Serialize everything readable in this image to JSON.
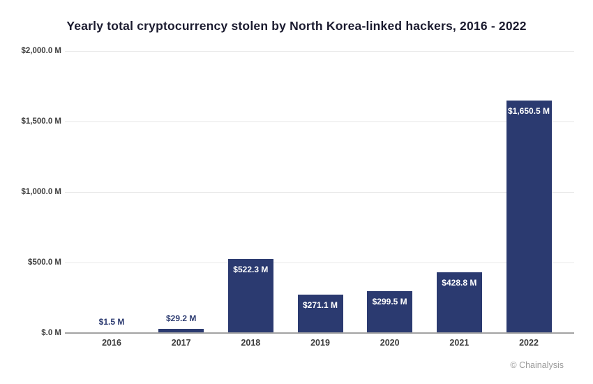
{
  "title": "Yearly total cryptocurrency stolen by North Korea-linked hackers, 2016 - 2022",
  "footer": "© Chainalysis",
  "colors": {
    "bar": "#2b3a70",
    "label_inside": "#ffffff",
    "label_outside": "#2b3a70",
    "gridline": "#e8e8e8",
    "baseline": "#a3a3a3",
    "axis_text": "#3d3d3d",
    "title_text": "#1b1b2f",
    "attribution_text": "#9b9b9b"
  },
  "chart_data": {
    "type": "bar",
    "title": "Yearly total cryptocurrency stolen by North Korea-linked hackers, 2016 - 2022",
    "categories": [
      "2016",
      "2017",
      "2018",
      "2019",
      "2020",
      "2021",
      "2022"
    ],
    "values": [
      1.5,
      29.2,
      522.3,
      271.1,
      299.5,
      428.8,
      1650.5
    ],
    "bar_labels": [
      "$1.5 M",
      "$29.2 M",
      "$522.3 M",
      "$271.1 M",
      "$299.5 M",
      "$428.8 M",
      "$1,650.5 M"
    ],
    "xlabel": "",
    "ylabel": "",
    "ylim": [
      0,
      2000
    ],
    "yticks": [
      {
        "value": 0,
        "label": "$.0 M"
      },
      {
        "value": 500,
        "label": "$500.0 M"
      },
      {
        "value": 1000,
        "label": "$1,000.0 M"
      },
      {
        "value": 1500,
        "label": "$1,500.0 M"
      },
      {
        "value": 2000,
        "label": "$2,000.0 M"
      }
    ],
    "grid": true,
    "legend": false,
    "units": "USD millions"
  }
}
